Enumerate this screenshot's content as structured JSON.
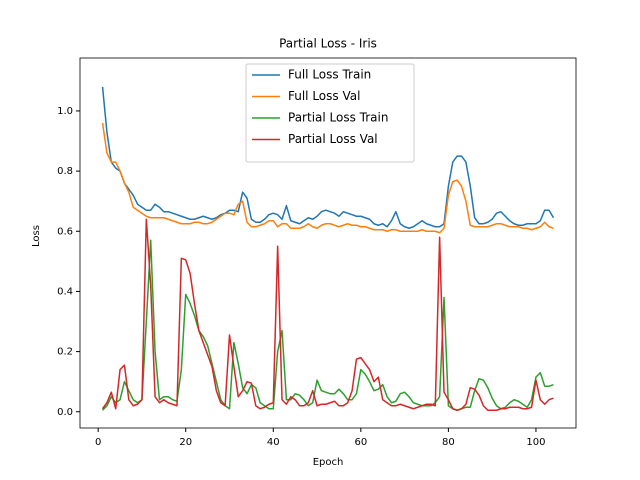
{
  "chart_data": {
    "type": "line",
    "title": "Partial Loss - Iris",
    "xlabel": "Epoch",
    "ylabel": "Loss",
    "x": [
      1,
      2,
      3,
      4,
      5,
      6,
      7,
      8,
      9,
      10,
      11,
      12,
      13,
      14,
      15,
      16,
      17,
      18,
      19,
      20,
      21,
      22,
      23,
      24,
      25,
      26,
      27,
      28,
      29,
      30,
      31,
      32,
      33,
      34,
      35,
      36,
      37,
      38,
      39,
      40,
      41,
      42,
      43,
      44,
      45,
      46,
      47,
      48,
      49,
      50,
      51,
      52,
      53,
      54,
      55,
      56,
      57,
      58,
      59,
      60,
      61,
      62,
      63,
      64,
      65,
      66,
      67,
      68,
      69,
      70,
      71,
      72,
      73,
      74,
      75,
      76,
      77,
      78,
      79,
      80,
      81,
      82,
      83,
      84,
      85,
      86,
      87,
      88,
      89,
      90,
      91,
      92,
      93,
      94,
      95,
      96,
      97,
      98,
      99,
      100,
      101,
      102,
      103,
      104
    ],
    "series": [
      {
        "name": "Full Loss Train",
        "color": "#1f77b4",
        "values": [
          1.08,
          0.93,
          0.83,
          0.81,
          0.8,
          0.76,
          0.74,
          0.72,
          0.69,
          0.68,
          0.67,
          0.67,
          0.69,
          0.68,
          0.665,
          0.665,
          0.66,
          0.655,
          0.65,
          0.645,
          0.64,
          0.64,
          0.645,
          0.65,
          0.645,
          0.64,
          0.645,
          0.655,
          0.66,
          0.67,
          0.67,
          0.665,
          0.73,
          0.71,
          0.64,
          0.63,
          0.63,
          0.64,
          0.655,
          0.66,
          0.655,
          0.64,
          0.685,
          0.635,
          0.63,
          0.625,
          0.635,
          0.645,
          0.64,
          0.65,
          0.665,
          0.67,
          0.665,
          0.66,
          0.65,
          0.665,
          0.66,
          0.655,
          0.65,
          0.65,
          0.645,
          0.64,
          0.625,
          0.62,
          0.625,
          0.615,
          0.635,
          0.665,
          0.625,
          0.615,
          0.61,
          0.615,
          0.625,
          0.635,
          0.625,
          0.62,
          0.615,
          0.615,
          0.625,
          0.75,
          0.83,
          0.85,
          0.85,
          0.83,
          0.75,
          0.645,
          0.625,
          0.625,
          0.63,
          0.64,
          0.66,
          0.665,
          0.65,
          0.635,
          0.625,
          0.62,
          0.62,
          0.625,
          0.625,
          0.625,
          0.635,
          0.67,
          0.67,
          0.645
        ]
      },
      {
        "name": "Full Loss Val",
        "color": "#ff7f0e",
        "values": [
          0.96,
          0.86,
          0.83,
          0.83,
          0.8,
          0.76,
          0.73,
          0.68,
          0.67,
          0.66,
          0.65,
          0.645,
          0.645,
          0.645,
          0.645,
          0.64,
          0.635,
          0.63,
          0.625,
          0.625,
          0.625,
          0.63,
          0.63,
          0.625,
          0.625,
          0.63,
          0.64,
          0.65,
          0.66,
          0.66,
          0.655,
          0.69,
          0.7,
          0.63,
          0.615,
          0.615,
          0.62,
          0.625,
          0.635,
          0.635,
          0.615,
          0.625,
          0.625,
          0.61,
          0.61,
          0.61,
          0.615,
          0.625,
          0.615,
          0.61,
          0.62,
          0.625,
          0.625,
          0.62,
          0.615,
          0.62,
          0.625,
          0.62,
          0.62,
          0.615,
          0.615,
          0.61,
          0.605,
          0.605,
          0.605,
          0.6,
          0.605,
          0.605,
          0.6,
          0.6,
          0.6,
          0.6,
          0.6,
          0.605,
          0.6,
          0.6,
          0.6,
          0.595,
          0.61,
          0.72,
          0.765,
          0.77,
          0.75,
          0.7,
          0.62,
          0.615,
          0.615,
          0.615,
          0.615,
          0.62,
          0.625,
          0.625,
          0.62,
          0.615,
          0.615,
          0.615,
          0.61,
          0.61,
          0.605,
          0.61,
          0.615,
          0.63,
          0.615,
          0.61
        ]
      },
      {
        "name": "Partial Loss Train",
        "color": "#2ca02c",
        "values": [
          0.005,
          0.02,
          0.05,
          0.03,
          0.04,
          0.1,
          0.07,
          0.04,
          0.03,
          0.04,
          0.3,
          0.57,
          0.2,
          0.04,
          0.05,
          0.05,
          0.04,
          0.035,
          0.14,
          0.39,
          0.36,
          0.32,
          0.27,
          0.25,
          0.22,
          0.16,
          0.1,
          0.04,
          0.02,
          0.01,
          0.23,
          0.16,
          0.08,
          0.06,
          0.09,
          0.08,
          0.03,
          0.02,
          0.01,
          0.01,
          0.2,
          0.27,
          0.04,
          0.04,
          0.06,
          0.055,
          0.04,
          0.02,
          0.03,
          0.105,
          0.07,
          0.065,
          0.06,
          0.06,
          0.075,
          0.06,
          0.04,
          0.04,
          0.06,
          0.14,
          0.125,
          0.1,
          0.07,
          0.075,
          0.09,
          0.05,
          0.03,
          0.035,
          0.06,
          0.065,
          0.05,
          0.03,
          0.025,
          0.02,
          0.02,
          0.02,
          0.03,
          0.05,
          0.38,
          0.02,
          0.01,
          0.005,
          0.01,
          0.015,
          0.015,
          0.07,
          0.11,
          0.105,
          0.08,
          0.045,
          0.02,
          0.01,
          0.015,
          0.03,
          0.04,
          0.035,
          0.025,
          0.015,
          0.04,
          0.115,
          0.13,
          0.085,
          0.085,
          0.09
        ]
      },
      {
        "name": "Partial Loss Val",
        "color": "#d62728",
        "values": [
          0.01,
          0.03,
          0.065,
          0.01,
          0.14,
          0.155,
          0.04,
          0.02,
          0.025,
          0.04,
          0.64,
          0.42,
          0.05,
          0.03,
          0.04,
          0.03,
          0.025,
          0.02,
          0.51,
          0.505,
          0.46,
          0.36,
          0.27,
          0.23,
          0.19,
          0.15,
          0.07,
          0.03,
          0.02,
          0.255,
          0.15,
          0.05,
          0.07,
          0.1,
          0.095,
          0.02,
          0.01,
          0.015,
          0.025,
          0.03,
          0.55,
          0.04,
          0.025,
          0.05,
          0.04,
          0.02,
          0.02,
          0.03,
          0.07,
          0.02,
          0.025,
          0.025,
          0.03,
          0.035,
          0.02,
          0.02,
          0.03,
          0.07,
          0.175,
          0.18,
          0.16,
          0.14,
          0.1,
          0.115,
          0.04,
          0.03,
          0.02,
          0.02,
          0.025,
          0.02,
          0.015,
          0.01,
          0.015,
          0.02,
          0.025,
          0.025,
          0.02,
          0.58,
          0.065,
          0.04,
          0.01,
          0.005,
          0.01,
          0.025,
          0.08,
          0.075,
          0.055,
          0.02,
          0.005,
          0.005,
          0.005,
          0.01,
          0.01,
          0.015,
          0.015,
          0.015,
          0.01,
          0.01,
          0.015,
          0.105,
          0.04,
          0.025,
          0.04,
          0.045
        ]
      }
    ],
    "xlim": [
      -4.15,
      109.15
    ],
    "ylim": [
      -0.054,
      1.176
    ],
    "xticks": [
      0,
      20,
      40,
      60,
      80,
      100
    ],
    "yticks": [
      {
        "value": 0,
        "label": "0.0"
      },
      {
        "value": 0.2,
        "label": "0.2"
      },
      {
        "value": 0.4,
        "label": "0.4"
      },
      {
        "value": 0.6,
        "label": "0.6"
      },
      {
        "value": 0.8,
        "label": "0.8"
      },
      {
        "value": 1,
        "label": "1.0"
      }
    ],
    "legend": "upper center"
  }
}
